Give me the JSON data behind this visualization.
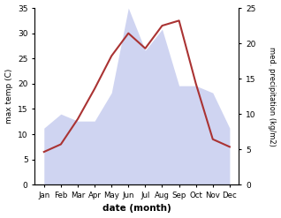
{
  "months": [
    "Jan",
    "Feb",
    "Mar",
    "Apr",
    "May",
    "Jun",
    "Jul",
    "Aug",
    "Sep",
    "Oct",
    "Nov",
    "Dec"
  ],
  "temperature": [
    6.5,
    8.0,
    13.0,
    19.0,
    25.5,
    30.0,
    27.0,
    31.5,
    32.5,
    20.0,
    9.0,
    7.5
  ],
  "precipitation": [
    8,
    10,
    9,
    9,
    13,
    25,
    19,
    22,
    14,
    14,
    13,
    8
  ],
  "temp_color": "#aa3333",
  "precip_color": "#b0b8e8",
  "precip_alpha": 0.6,
  "temp_ylim": [
    0,
    35
  ],
  "precip_ylim": [
    0,
    25
  ],
  "xlabel": "date (month)",
  "ylabel_left": "max temp (C)",
  "ylabel_right": "med. precipitation (kg/m2)",
  "bg_color": "#ffffff"
}
